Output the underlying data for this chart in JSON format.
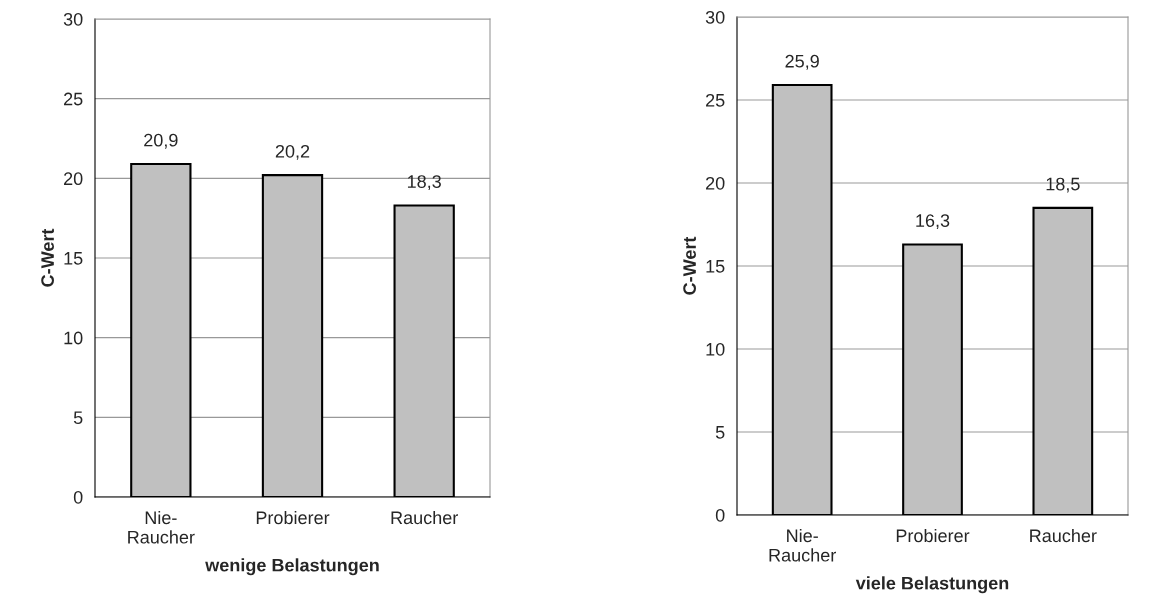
{
  "chart_data": [
    {
      "type": "bar",
      "categories": [
        "Nie-\nRaucher",
        "Probierer",
        "Raucher"
      ],
      "values": [
        20.9,
        20.2,
        18.3
      ],
      "value_labels": [
        "20,9",
        "20,2",
        "18,3"
      ],
      "color": "#c0c0c0",
      "xlabel": "wenige Belastungen",
      "ylabel": "C-Wert",
      "ylim": [
        0,
        30
      ],
      "yticks": [
        0,
        5,
        10,
        15,
        20,
        25,
        30
      ],
      "grid": "y"
    },
    {
      "type": "bar",
      "categories": [
        "Nie-\nRaucher",
        "Probierer",
        "Raucher"
      ],
      "values": [
        25.9,
        16.3,
        18.5
      ],
      "value_labels": [
        "25,9",
        "16,3",
        "18,5"
      ],
      "color": "#c0c0c0",
      "xlabel": "viele Belastungen",
      "ylabel": "C-Wert",
      "ylim": [
        0,
        30
      ],
      "yticks": [
        0,
        5,
        10,
        15,
        20,
        25,
        30
      ],
      "grid": "y"
    }
  ]
}
